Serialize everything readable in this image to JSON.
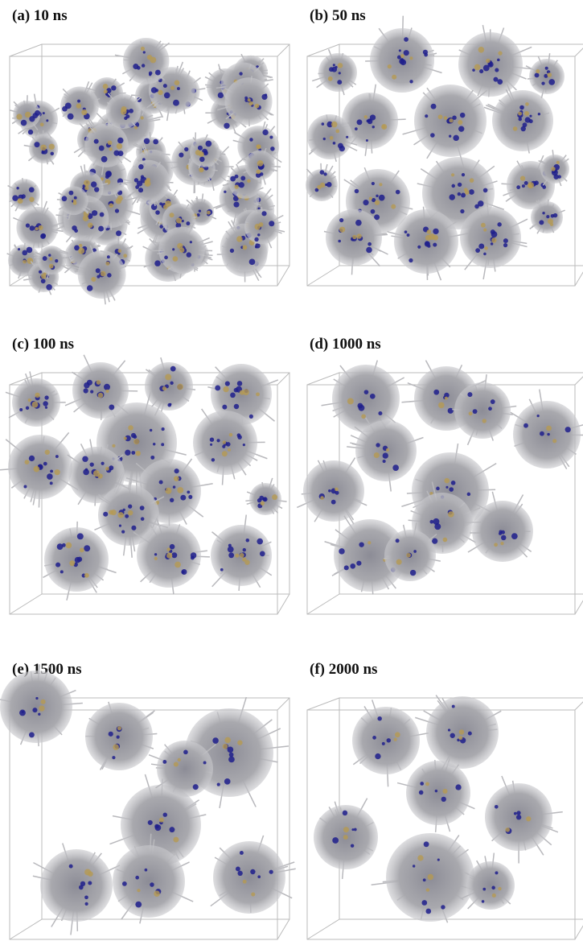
{
  "panels": [
    {
      "label": "(a) 10 ns"
    },
    {
      "label": "(b) 50 ns"
    },
    {
      "label": "(c) 100 ns"
    },
    {
      "label": "(d) 1000 ns"
    },
    {
      "label": "(e) 1500 ns"
    },
    {
      "label": "(f) 2000 ns"
    }
  ]
}
